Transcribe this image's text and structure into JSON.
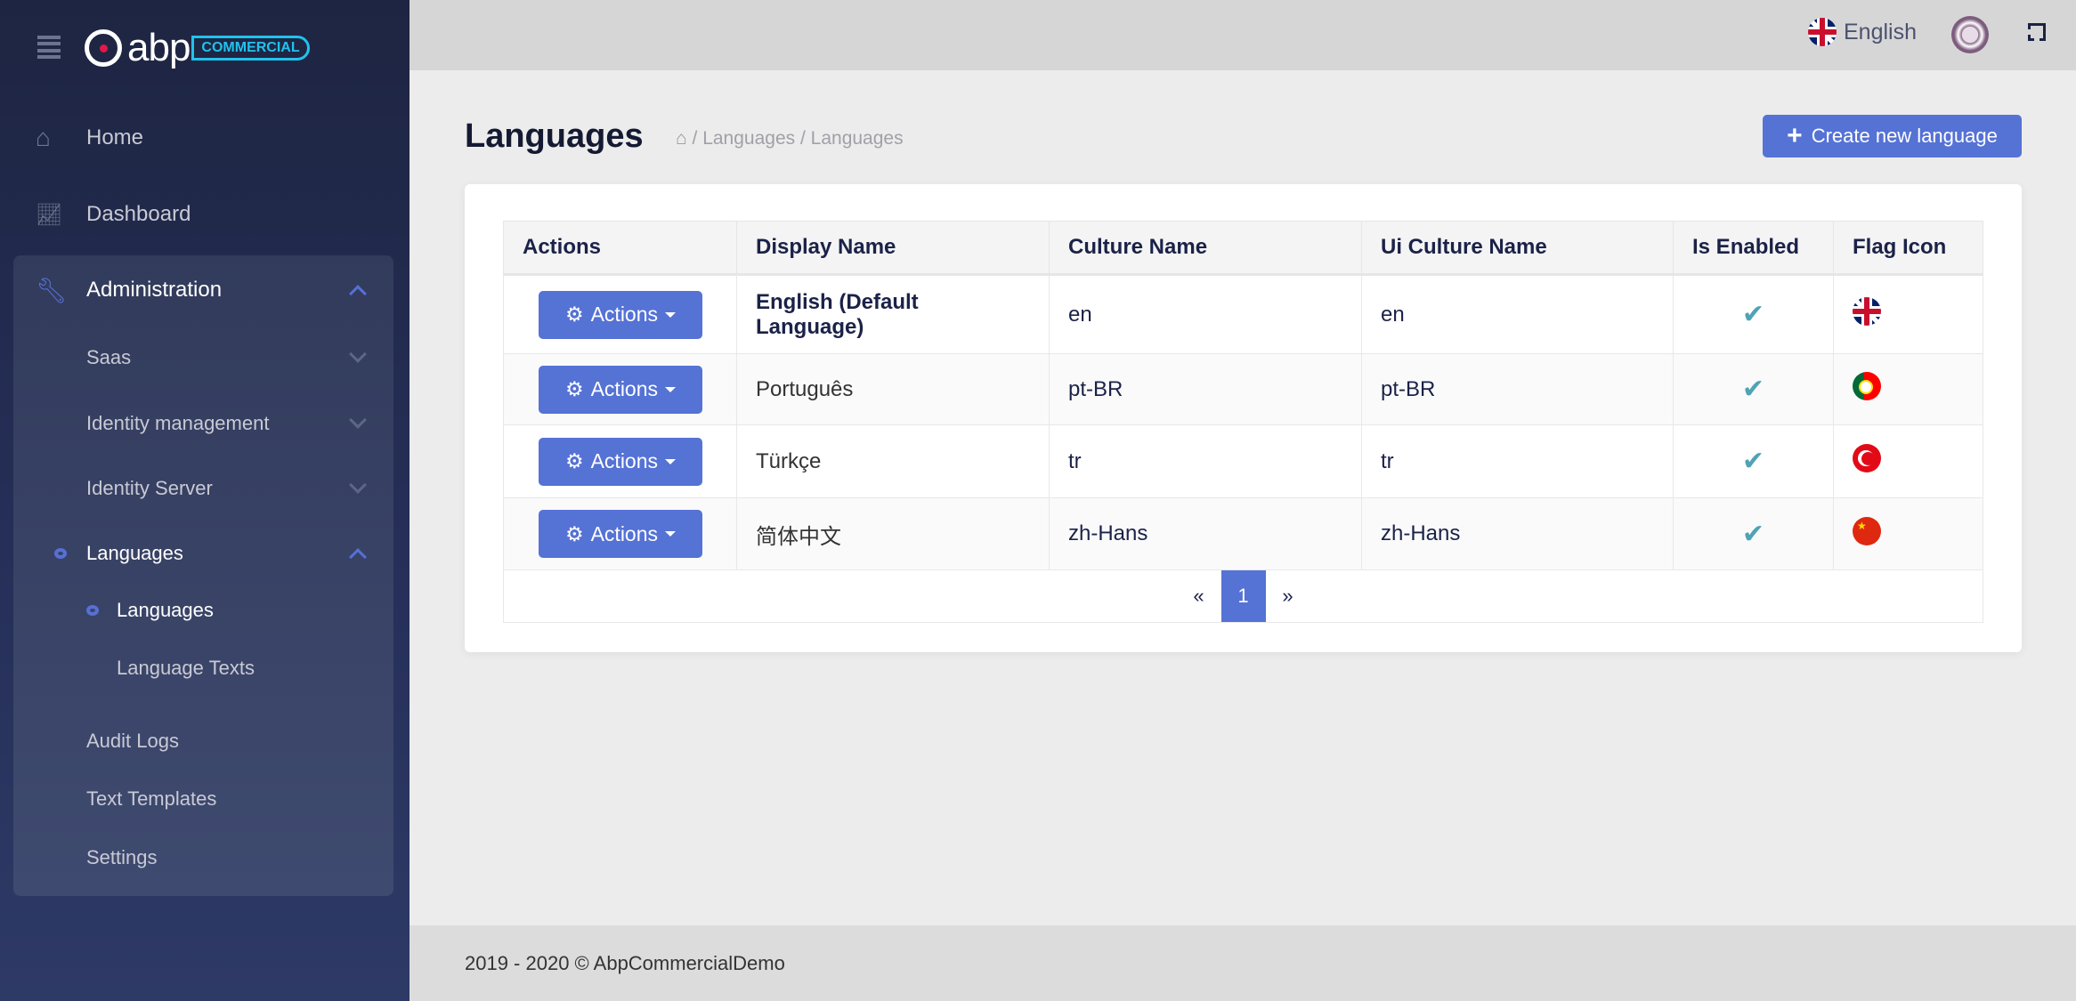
{
  "brand": {
    "logo_text": "abp",
    "logo_badge": "COMMERCIAL"
  },
  "sidebar": {
    "home": "Home",
    "dashboard": "Dashboard",
    "administration": "Administration",
    "saas": "Saas",
    "identity_management": "Identity management",
    "identity_server": "Identity Server",
    "languages_group": "Languages",
    "languages": "Languages",
    "language_texts": "Language Texts",
    "audit_logs": "Audit Logs",
    "text_templates": "Text Templates",
    "settings": "Settings"
  },
  "topbar": {
    "language": "English"
  },
  "page": {
    "title": "Languages",
    "breadcrumb": [
      "Languages",
      "Languages"
    ],
    "create_label": "Create new language"
  },
  "table": {
    "columns": [
      "Actions",
      "Display Name",
      "Culture Name",
      "Ui Culture Name",
      "Is Enabled",
      "Flag Icon"
    ],
    "action_label": "Actions",
    "rows": [
      {
        "display": "English (Default Language)",
        "culture": "en",
        "ui_culture": "en",
        "enabled": "✔",
        "flag": "gb"
      },
      {
        "display": "Português",
        "culture": "pt-BR",
        "ui_culture": "pt-BR",
        "enabled": "✔",
        "flag": "pt"
      },
      {
        "display": "Türkçe",
        "culture": "tr",
        "ui_culture": "tr",
        "enabled": "✔",
        "flag": "tr"
      },
      {
        "display": "简体中文",
        "culture": "zh-Hans",
        "ui_culture": "zh-Hans",
        "enabled": "✔",
        "flag": "cn"
      }
    ]
  },
  "pagination": {
    "prev": "«",
    "current": "1",
    "next": "»"
  },
  "footer": {
    "text": "2019 - 2020 © AbpCommercialDemo"
  },
  "colors": {
    "primary": "#5572d5",
    "sidebar": "#1e2542",
    "check": "#4fa3b5"
  }
}
